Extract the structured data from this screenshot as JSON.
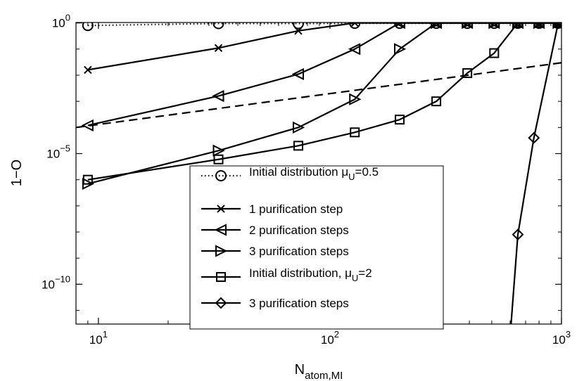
{
  "chart_data": {
    "type": "line",
    "title": "",
    "xlabel": "N",
    "xlabel_sub": "atom,MI",
    "ylabel": "1−O",
    "x_scale": "log",
    "y_scale": "log",
    "xlim": [
      8,
      1000
    ],
    "ylim": [
      1e-12,
      1
    ],
    "x_ticks": [
      {
        "value": 10,
        "base": "10",
        "exp": "1"
      },
      {
        "value": 100,
        "base": "10",
        "exp": "2"
      },
      {
        "value": 1000,
        "base": "10",
        "exp": "3"
      }
    ],
    "y_ticks": [
      {
        "value": 1,
        "base": "10",
        "exp": "0"
      },
      {
        "value": 1e-05,
        "base": "10",
        "exp": "−5"
      },
      {
        "value": 1e-10,
        "base": "10",
        "exp": "−10"
      }
    ],
    "grid": false,
    "legend_position": "bottom-center",
    "series": [
      {
        "label_main": "Initial distribution μ",
        "label_sub": "U",
        "label_tail": "=0.5",
        "style": "dotted",
        "marker": "circle",
        "x": [
          9,
          33,
          73,
          128,
          200,
          288,
          392,
          512,
          648,
          800,
          968
        ],
        "y": [
          0.8,
          0.95,
          0.95,
          0.97,
          0.97,
          0.97,
          0.97,
          0.97,
          0.97,
          0.97,
          0.97
        ]
      },
      {
        "label_main": "1 purification step",
        "style": "solid",
        "marker": "x",
        "x": [
          9,
          33,
          73,
          128,
          200,
          288,
          392,
          512,
          648,
          800,
          968
        ],
        "y": [
          0.016,
          0.11,
          0.5,
          1,
          1,
          1,
          1,
          1,
          1,
          1,
          1
        ]
      },
      {
        "label_main": "2 purification steps",
        "style": "solid",
        "marker": "triangle-left",
        "x": [
          9,
          33,
          73,
          128,
          200,
          288,
          392,
          512,
          648,
          800,
          968
        ],
        "y": [
          0.00012,
          0.0016,
          0.011,
          0.1,
          1,
          1,
          1,
          1,
          1,
          1,
          1
        ]
      },
      {
        "label_main": "3 purification steps",
        "style": "solid",
        "marker": "triangle-right",
        "x": [
          9,
          33,
          73,
          128,
          200,
          288,
          392,
          512,
          648,
          800,
          968
        ],
        "y": [
          7e-07,
          1.3e-05,
          0.0001,
          0.0012,
          0.1,
          1,
          1,
          1,
          1,
          1,
          1
        ]
      },
      {
        "label_main": "Initial distribution, μ",
        "label_sub": "U",
        "label_tail": "=2",
        "style": "solid",
        "marker": "square",
        "x": [
          9,
          33,
          73,
          128,
          200,
          288,
          392,
          512,
          648,
          800,
          968
        ],
        "y": [
          1e-06,
          6e-06,
          2e-05,
          6.5e-05,
          0.0002,
          0.001,
          0.012,
          0.07,
          1,
          1,
          1
        ]
      },
      {
        "label_main": "3 purification steps",
        "style": "solid",
        "marker": "diamond",
        "x": [
          600,
          648,
          760,
          968
        ],
        "y": [
          1e-12,
          8e-09,
          4e-05,
          1
        ]
      },
      {
        "label_main": "",
        "style": "dashed",
        "marker": "none",
        "x": [
          8,
          1000
        ],
        "y": [
          0.0001,
          0.03
        ]
      }
    ]
  }
}
